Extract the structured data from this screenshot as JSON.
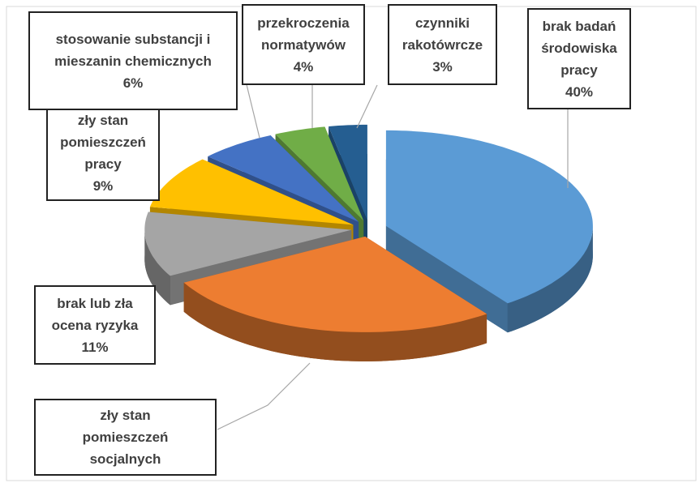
{
  "chart_data": {
    "type": "pie",
    "categories": [
      "brak badań\nśrodowiska\npracy",
      "zły stan\npomieszczeń\nsocjalnych",
      "brak lub zła\nocena ryzyka",
      "zły stan\npomieszczeń\npracy",
      "stosowanie substancji i\nmieszanin chemicznych",
      "przekroczenia\nnormatywów",
      "czynniki\nrakotówrcze"
    ],
    "values": [
      40,
      27,
      11,
      9,
      6,
      4,
      3
    ],
    "value_labels": [
      "40%",
      null,
      "11%",
      "9%",
      "6%",
      "4%",
      "3%"
    ],
    "colors": [
      "#5b9bd5",
      "#ed7d31",
      "#a5a5a5",
      "#ffc000",
      "#4472c4",
      "#70ad47",
      "#255e91"
    ]
  }
}
